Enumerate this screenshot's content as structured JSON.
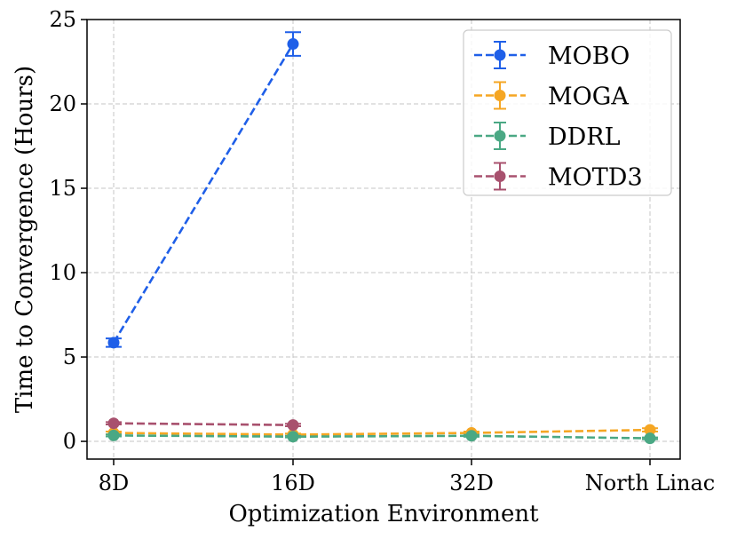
{
  "chart_data": {
    "type": "line",
    "title": "",
    "xlabel": "Optimization Environment",
    "ylabel": "Time to Convergence (Hours)",
    "categories": [
      "8D",
      "16D",
      "32D",
      "North Linac"
    ],
    "ylim": [
      -1.05,
      25
    ],
    "yticks": [
      0,
      5,
      10,
      15,
      20,
      25
    ],
    "ytick_labels": [
      "0",
      "5",
      "10",
      "15",
      "20",
      "25"
    ],
    "grid": true,
    "legend_position": "top-right",
    "series": [
      {
        "name": "MOBO",
        "color": "#1f5fe8",
        "values": [
          5.85,
          23.55,
          null,
          null
        ],
        "errors": [
          0.25,
          0.7,
          null,
          null
        ]
      },
      {
        "name": "MOGA",
        "color": "#f5a623",
        "values": [
          0.5,
          0.4,
          0.5,
          0.68
        ],
        "errors": [
          0.08,
          0.06,
          0.08,
          0.1
        ]
      },
      {
        "name": "DDRL",
        "color": "#4aa884",
        "values": [
          0.35,
          0.28,
          0.33,
          0.18
        ],
        "errors": [
          0.06,
          0.05,
          0.06,
          0.05
        ]
      },
      {
        "name": "MOTD3",
        "color": "#a8516e",
        "values": [
          1.07,
          0.97,
          null,
          null
        ],
        "errors": [
          0.07,
          0.07,
          null,
          null
        ]
      }
    ]
  }
}
